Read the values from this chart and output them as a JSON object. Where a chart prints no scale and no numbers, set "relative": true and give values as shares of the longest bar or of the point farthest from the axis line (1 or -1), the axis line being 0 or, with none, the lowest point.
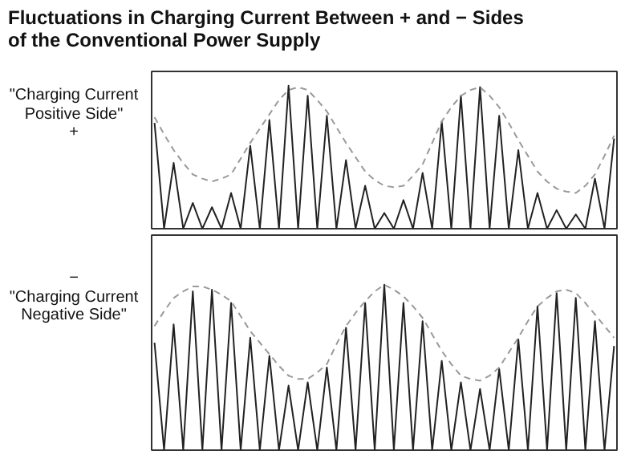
{
  "chart_data": [
    {
      "type": "line",
      "relative": true,
      "title": "Fluctuations in Charging Current Between + and − Sides\nof the Conventional Power Supply",
      "ylabel": "\"Charging Current\nPositive Side\"\n+",
      "categories": [
        null,
        null,
        null,
        null,
        null,
        null,
        null,
        null,
        null,
        null,
        null,
        null,
        null,
        null,
        null,
        null,
        null,
        null,
        null,
        null,
        null,
        null,
        null,
        null,
        null,
        null,
        null,
        null,
        null,
        null,
        null,
        null,
        null,
        null,
        null,
        null,
        null,
        null,
        null,
        null,
        null,
        null,
        null,
        null,
        null,
        null,
        null,
        null,
        null
      ],
      "grid": false,
      "series": [
        {
          "color": "#222222",
          "values": [
            0.74,
            0,
            0.46,
            0,
            0.18,
            0,
            0.15,
            0,
            0.25,
            0,
            0.58,
            0,
            0.76,
            0,
            1,
            0,
            0.93,
            0,
            0.79,
            0,
            0.48,
            0,
            0.3,
            0,
            0.11,
            0,
            0.2,
            0,
            0.39,
            0,
            0.75,
            0,
            0.93,
            0,
            0.99,
            0,
            0.79,
            0,
            0.55,
            0,
            0.25,
            0,
            0.13,
            0,
            0.1,
            0,
            0.35,
            0,
            0.63
          ]
        },
        {
          "line_style": "dashed",
          "color": "#9a9a9a",
          "values": [
            0.78,
            0.66,
            0.55,
            0.46,
            0.38,
            0.35,
            0.33,
            0.35,
            0.38,
            0.49,
            0.6,
            0.7,
            0.8,
            0.9,
            0.97,
            0.99,
            0.97,
            0.9,
            0.82,
            0.71,
            0.6,
            0.5,
            0.4,
            0.34,
            0.3,
            0.29,
            0.3,
            0.37,
            0.45,
            0.6,
            0.75,
            0.85,
            0.93,
            0.97,
            0.99,
            0.93,
            0.85,
            0.74,
            0.62,
            0.51,
            0.4,
            0.33,
            0.28,
            0.26,
            0.25,
            0.3,
            0.38,
            0.51,
            0.65
          ]
        }
      ]
    },
    {
      "type": "line",
      "relative": true,
      "ylabel": "−\n\"Charging Current\nNegative Side\"",
      "categories": [
        null,
        null,
        null,
        null,
        null,
        null,
        null,
        null,
        null,
        null,
        null,
        null,
        null,
        null,
        null,
        null,
        null,
        null,
        null,
        null,
        null,
        null,
        null,
        null,
        null,
        null,
        null,
        null,
        null,
        null,
        null,
        null,
        null,
        null,
        null,
        null,
        null,
        null,
        null,
        null,
        null,
        null,
        null,
        null,
        null,
        null,
        null,
        null,
        null
      ],
      "grid": false,
      "series": [
        {
          "color": "#222222",
          "values": [
            0.65,
            0,
            0.76,
            0,
            0.96,
            0,
            0.97,
            0,
            0.89,
            0,
            0.68,
            0,
            0.57,
            0,
            0.39,
            0,
            0.41,
            0,
            0.5,
            0,
            0.74,
            0,
            0.89,
            0,
            1,
            0,
            0.89,
            0,
            0.78,
            0,
            0.54,
            0,
            0.41,
            0,
            0.37,
            0,
            0.49,
            0,
            0.67,
            0,
            0.87,
            0,
            0.95,
            0,
            0.92,
            0,
            0.78,
            0,
            0.63
          ]
        },
        {
          "line_style": "dashed",
          "color": "#9a9a9a",
          "values": [
            0.75,
            0.84,
            0.92,
            0.96,
            0.99,
            0.99,
            0.97,
            0.94,
            0.9,
            0.81,
            0.72,
            0.65,
            0.58,
            0.51,
            0.45,
            0.43,
            0.43,
            0.47,
            0.52,
            0.64,
            0.75,
            0.83,
            0.9,
            0.96,
            1,
            0.97,
            0.93,
            0.87,
            0.8,
            0.7,
            0.6,
            0.52,
            0.45,
            0.43,
            0.42,
            0.45,
            0.5,
            0.59,
            0.68,
            0.78,
            0.87,
            0.92,
            0.96,
            0.97,
            0.95,
            0.89,
            0.82,
            0.75,
            0.68
          ]
        }
      ]
    }
  ]
}
